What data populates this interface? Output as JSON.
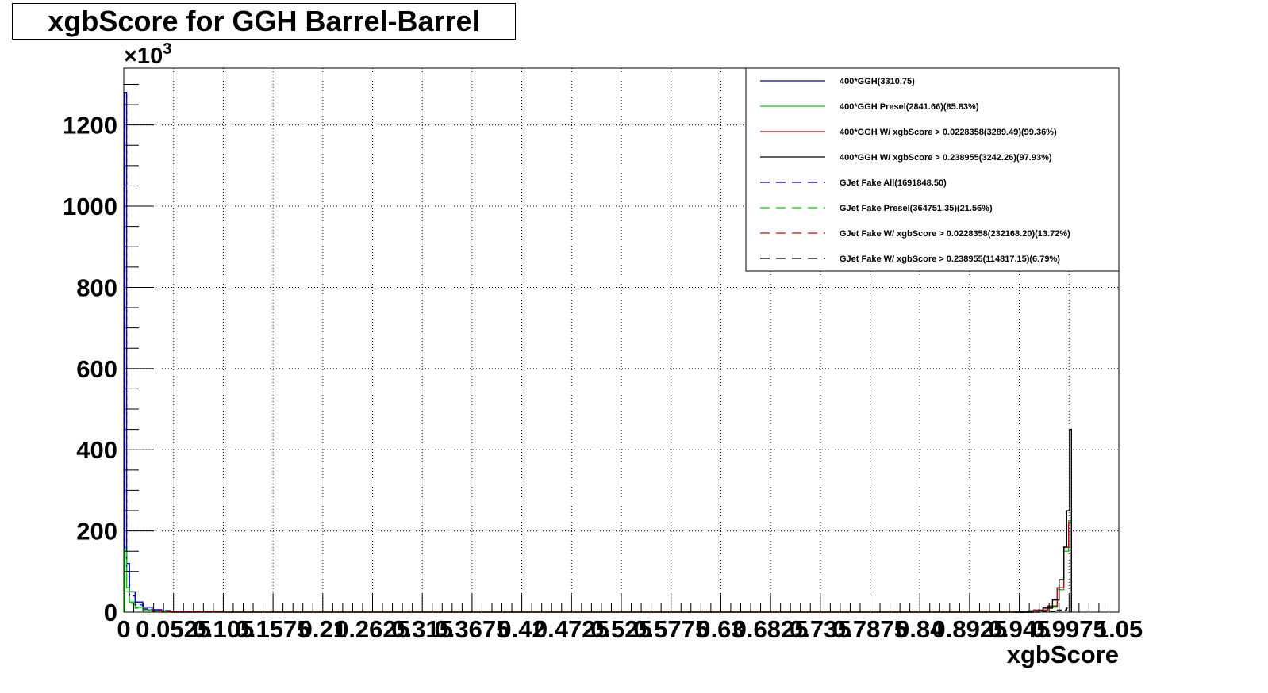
{
  "chart_data": {
    "type": "histogram",
    "title": "xgbScore for GGH Barrel-Barrel",
    "xlabel": "xgbScore",
    "ylabel": "",
    "y_multiplier_label": "×10",
    "y_multiplier_exponent": "3",
    "xlim": [
      0,
      1.05
    ],
    "ylim": [
      0,
      1340
    ],
    "grid": true,
    "legend_position": "top-right",
    "x_tick_values": [
      0,
      0.0525,
      0.105,
      0.1575,
      0.21,
      0.2625,
      0.315,
      0.3675,
      0.42,
      0.4725,
      0.525,
      0.5775,
      0.63,
      0.6825,
      0.735,
      0.7875,
      0.84,
      0.8925,
      0.945,
      0.9975,
      1.05
    ],
    "x_tick_labels": [
      "0",
      "0.0525",
      "0.105",
      "0.1575",
      "0.21",
      "0.2625",
      "0.315",
      "0.3675",
      "0.42",
      "0.4725",
      "0.525",
      "0.5775",
      "0.63",
      "0.6825",
      "0.735",
      "0.7875",
      "0.84",
      "0.8925",
      "0.945",
      "0.9975",
      "1.05"
    ],
    "y_tick_values": [
      0,
      200,
      400,
      600,
      800,
      1000,
      1200
    ],
    "y_tick_labels": [
      "0",
      "200",
      "400",
      "600",
      "800",
      "1000",
      "1200"
    ],
    "series": [
      {
        "name": "400*GGH(3310.75)",
        "color": "#0000cc",
        "dash": "solid",
        "points": [
          [
            0.001,
            1280
          ],
          [
            0.003,
            120
          ],
          [
            0.006,
            50
          ],
          [
            0.012,
            25
          ],
          [
            0.02,
            12
          ],
          [
            0.03,
            6
          ],
          [
            0.04,
            2
          ],
          [
            0.05,
            0
          ],
          [
            0.94,
            0
          ],
          [
            0.96,
            5
          ],
          [
            0.975,
            15
          ],
          [
            0.985,
            60
          ],
          [
            0.992,
            160
          ],
          [
            0.997,
            220
          ],
          [
            1.0,
            0
          ]
        ]
      },
      {
        "name": "400*GGH Presel(2841.66)(85.83%)",
        "color": "#00cc00",
        "dash": "solid",
        "points": [
          [
            0.001,
            160
          ],
          [
            0.003,
            60
          ],
          [
            0.006,
            25
          ],
          [
            0.012,
            12
          ],
          [
            0.02,
            6
          ],
          [
            0.03,
            3
          ],
          [
            0.04,
            0
          ],
          [
            0.94,
            0
          ],
          [
            0.96,
            4
          ],
          [
            0.975,
            12
          ],
          [
            0.985,
            55
          ],
          [
            0.992,
            150
          ],
          [
            0.997,
            225
          ],
          [
            1.0,
            0
          ]
        ]
      },
      {
        "name": "400*GGH W/ xgbScore > 0.0228358(3289.49)(99.36%)",
        "color": "#cc0000",
        "dash": "solid",
        "points": [
          [
            0.03,
            3
          ],
          [
            0.05,
            2
          ],
          [
            0.08,
            1
          ],
          [
            0.105,
            0
          ],
          [
            0.94,
            0
          ],
          [
            0.96,
            5
          ],
          [
            0.975,
            15
          ],
          [
            0.985,
            60
          ],
          [
            0.992,
            160
          ],
          [
            0.997,
            220
          ],
          [
            1.0,
            0
          ]
        ]
      },
      {
        "name": "400*GGH W/ xgbScore > 0.238955(3242.26)(97.93%)",
        "color": "#000000",
        "dash": "solid",
        "points": [
          [
            0.94,
            0
          ],
          [
            0.955,
            3
          ],
          [
            0.97,
            10
          ],
          [
            0.98,
            30
          ],
          [
            0.987,
            80
          ],
          [
            0.992,
            160
          ],
          [
            0.995,
            250
          ],
          [
            0.998,
            450
          ],
          [
            1.0,
            0
          ]
        ]
      },
      {
        "name": "GJet Fake All(1691848.50)",
        "color": "#0000cc",
        "dash": "dashed",
        "points": [
          [
            0.001,
            1280
          ],
          [
            0.003,
            100
          ],
          [
            0.006,
            40
          ],
          [
            0.012,
            18
          ],
          [
            0.02,
            8
          ],
          [
            0.03,
            4
          ],
          [
            0.05,
            1
          ],
          [
            0.08,
            0
          ]
        ]
      },
      {
        "name": "GJet Fake Presel(364751.35)(21.56%)",
        "color": "#00cc00",
        "dash": "dashed",
        "points": [
          [
            0.001,
            150
          ],
          [
            0.003,
            55
          ],
          [
            0.006,
            22
          ],
          [
            0.012,
            10
          ],
          [
            0.02,
            5
          ],
          [
            0.03,
            2
          ],
          [
            0.05,
            0
          ]
        ]
      },
      {
        "name": "GJet Fake W/ xgbScore > 0.0228358(232168.20)(13.72%)",
        "color": "#cc0000",
        "dash": "dashed",
        "points": [
          [
            0.03,
            3
          ],
          [
            0.05,
            2
          ],
          [
            0.08,
            1
          ],
          [
            0.105,
            0
          ]
        ]
      },
      {
        "name": "GJet Fake W/ xgbScore > 0.238955(114817.15)(6.79%)",
        "color": "#000000",
        "dash": "dashed",
        "points": [
          [
            0.945,
            0
          ],
          [
            0.97,
            2
          ],
          [
            0.985,
            5
          ],
          [
            0.995,
            10
          ],
          [
            1.0,
            0
          ]
        ]
      }
    ]
  }
}
